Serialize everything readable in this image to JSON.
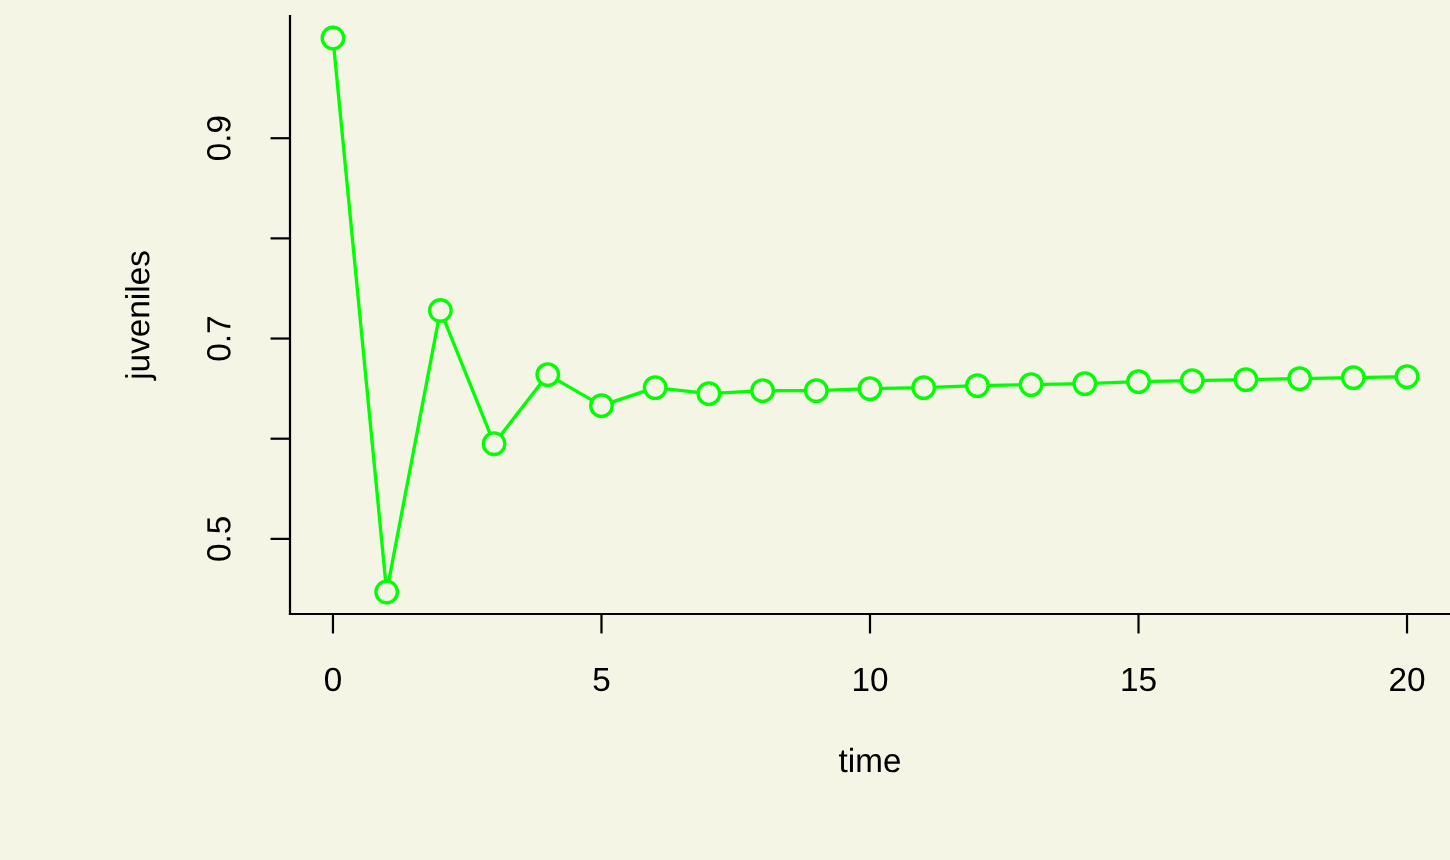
{
  "chart_data": {
    "type": "line",
    "xlabel": "time",
    "ylabel": "juveniles",
    "marker": "circle",
    "line_style": "solid",
    "grid": false,
    "x": [
      0,
      1,
      2,
      3,
      4,
      5,
      6,
      7,
      8,
      9,
      10,
      11,
      12,
      13,
      14,
      15,
      16,
      17,
      18,
      19,
      20
    ],
    "series": [
      {
        "color": "#00ff00",
        "values": [
          1.0,
          0.447,
          0.728,
          0.595,
          0.664,
          0.633,
          0.651,
          0.645,
          0.648,
          0.648,
          0.65,
          0.651,
          0.653,
          0.654,
          0.655,
          0.657,
          0.658,
          0.659,
          0.66,
          0.661,
          0.662
        ]
      }
    ],
    "xlim": [
      -0.8,
      20.8
    ],
    "ylim": [
      0.425,
      1.022
    ],
    "xticks": [
      0,
      5,
      10,
      15,
      20
    ],
    "yticks": [
      0.5,
      {
        "value": 0.6,
        "label": null
      },
      0.7,
      {
        "value": 0.8,
        "label": null
      },
      0.9
    ]
  }
}
